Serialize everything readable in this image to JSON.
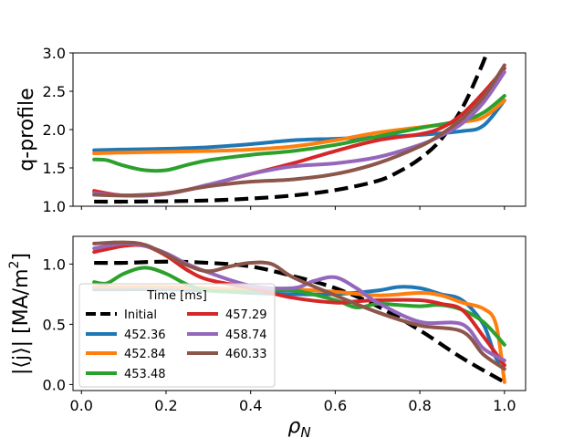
{
  "colors": {
    "Initial": "#000000",
    "452.36": "#1f77b4",
    "452.84": "#ff7f0e",
    "453.48": "#2ca02c",
    "457.29": "#d62728",
    "458.74": "#9467bd",
    "460.33": "#8c564b"
  },
  "chart_data": [
    {
      "type": "line",
      "ylabel": "q-profile",
      "xlim": [
        -0.02,
        1.05
      ],
      "ylim": [
        1.0,
        3.0
      ],
      "xticks": [
        0.0,
        0.2,
        0.4,
        0.6,
        0.8,
        1.0
      ],
      "yticks": [
        1.0,
        1.5,
        2.0,
        2.5,
        3.0
      ],
      "ytick_labels": [
        "1.0",
        "1.5",
        "2.0",
        "2.5",
        "3.0"
      ],
      "series": [
        {
          "name": "Initial",
          "dashed": true,
          "x": [
            0.03,
            0.1,
            0.2,
            0.3,
            0.4,
            0.5,
            0.6,
            0.7,
            0.75,
            0.8,
            0.85,
            0.9,
            0.94,
            0.96
          ],
          "y": [
            1.06,
            1.06,
            1.065,
            1.075,
            1.1,
            1.14,
            1.21,
            1.33,
            1.45,
            1.62,
            1.87,
            2.28,
            2.75,
            3.02
          ]
        },
        {
          "name": "452.36",
          "x": [
            0.03,
            0.1,
            0.2,
            0.3,
            0.4,
            0.5,
            0.6,
            0.7,
            0.8,
            0.9,
            0.95,
            1.0
          ],
          "y": [
            1.73,
            1.74,
            1.75,
            1.77,
            1.81,
            1.86,
            1.88,
            1.9,
            1.93,
            1.98,
            2.05,
            2.38
          ]
        },
        {
          "name": "452.84",
          "x": [
            0.03,
            0.1,
            0.2,
            0.3,
            0.4,
            0.5,
            0.6,
            0.7,
            0.8,
            0.9,
            0.95,
            1.0
          ],
          "y": [
            1.69,
            1.7,
            1.71,
            1.72,
            1.74,
            1.78,
            1.86,
            1.96,
            2.03,
            2.1,
            2.16,
            2.38
          ]
        },
        {
          "name": "453.48",
          "x": [
            0.03,
            0.06,
            0.1,
            0.15,
            0.2,
            0.25,
            0.3,
            0.4,
            0.5,
            0.6,
            0.7,
            0.8,
            0.9,
            0.95,
            1.0
          ],
          "y": [
            1.61,
            1.6,
            1.53,
            1.47,
            1.47,
            1.54,
            1.6,
            1.67,
            1.72,
            1.8,
            1.91,
            2.02,
            2.12,
            2.22,
            2.44
          ]
        },
        {
          "name": "457.29",
          "x": [
            0.03,
            0.1,
            0.2,
            0.3,
            0.4,
            0.5,
            0.6,
            0.7,
            0.8,
            0.85,
            0.9,
            0.95,
            1.0
          ],
          "y": [
            1.2,
            1.14,
            1.16,
            1.28,
            1.42,
            1.56,
            1.72,
            1.86,
            1.94,
            2.02,
            2.2,
            2.48,
            2.8
          ]
        },
        {
          "name": "458.74",
          "x": [
            0.03,
            0.1,
            0.2,
            0.3,
            0.4,
            0.5,
            0.6,
            0.7,
            0.8,
            0.85,
            0.9,
            0.95,
            1.0
          ],
          "y": [
            1.17,
            1.14,
            1.16,
            1.28,
            1.42,
            1.52,
            1.56,
            1.64,
            1.8,
            1.92,
            2.08,
            2.35,
            2.75
          ]
        },
        {
          "name": "460.33",
          "x": [
            0.03,
            0.1,
            0.2,
            0.3,
            0.4,
            0.5,
            0.6,
            0.7,
            0.8,
            0.85,
            0.9,
            0.95,
            1.0
          ],
          "y": [
            1.15,
            1.14,
            1.17,
            1.26,
            1.32,
            1.35,
            1.42,
            1.56,
            1.78,
            1.94,
            2.14,
            2.42,
            2.84
          ]
        }
      ]
    },
    {
      "type": "line",
      "ylabel": "|⟨j⟩| [MA/m",
      "ylabel_sup": "2",
      "ylabel_close": "]",
      "xlabel": "ρ",
      "xlabel_sub": "N",
      "xlim": [
        -0.02,
        1.05
      ],
      "ylim": [
        -0.05,
        1.23
      ],
      "xticks": [
        0.0,
        0.2,
        0.4,
        0.6,
        0.8,
        1.0
      ],
      "xtick_labels": [
        "0.0",
        "0.2",
        "0.4",
        "0.6",
        "0.8",
        "1.0"
      ],
      "yticks": [
        0.0,
        0.5,
        1.0
      ],
      "ytick_labels": [
        "0.0",
        "0.5",
        "1.0"
      ],
      "series": [
        {
          "name": "Initial",
          "dashed": true,
          "x": [
            0.03,
            0.1,
            0.2,
            0.3,
            0.4,
            0.5,
            0.6,
            0.7,
            0.8,
            0.9,
            1.0
          ],
          "y": [
            1.01,
            1.01,
            1.02,
            1.01,
            0.98,
            0.9,
            0.8,
            0.65,
            0.45,
            0.22,
            0.02
          ]
        },
        {
          "name": "452.36",
          "x": [
            0.03,
            0.1,
            0.2,
            0.3,
            0.4,
            0.5,
            0.6,
            0.7,
            0.75,
            0.8,
            0.85,
            0.9,
            0.95,
            0.98,
            1.0
          ],
          "y": [
            0.79,
            0.79,
            0.79,
            0.78,
            0.76,
            0.75,
            0.75,
            0.78,
            0.81,
            0.8,
            0.75,
            0.7,
            0.5,
            0.22,
            0.16
          ]
        },
        {
          "name": "452.84",
          "x": [
            0.03,
            0.1,
            0.2,
            0.3,
            0.4,
            0.5,
            0.6,
            0.7,
            0.8,
            0.85,
            0.9,
            0.95,
            0.98,
            1.0
          ],
          "y": [
            0.81,
            0.81,
            0.81,
            0.8,
            0.79,
            0.79,
            0.77,
            0.74,
            0.76,
            0.74,
            0.68,
            0.63,
            0.5,
            0.02
          ]
        },
        {
          "name": "453.48",
          "x": [
            0.03,
            0.06,
            0.1,
            0.15,
            0.2,
            0.25,
            0.3,
            0.4,
            0.5,
            0.6,
            0.65,
            0.7,
            0.75,
            0.8,
            0.85,
            0.9,
            0.95,
            1.0
          ],
          "y": [
            0.85,
            0.84,
            0.92,
            0.97,
            0.92,
            0.83,
            0.78,
            0.77,
            0.78,
            0.7,
            0.64,
            0.67,
            0.66,
            0.65,
            0.66,
            0.62,
            0.52,
            0.33
          ]
        },
        {
          "name": "457.29",
          "x": [
            0.03,
            0.1,
            0.15,
            0.2,
            0.25,
            0.3,
            0.4,
            0.5,
            0.6,
            0.65,
            0.7,
            0.8,
            0.85,
            0.9,
            0.95,
            1.0
          ],
          "y": [
            1.1,
            1.15,
            1.15,
            1.07,
            0.95,
            0.87,
            0.8,
            0.72,
            0.68,
            0.69,
            0.7,
            0.7,
            0.67,
            0.62,
            0.4,
            0.16
          ]
        },
        {
          "name": "458.74",
          "x": [
            0.03,
            0.1,
            0.15,
            0.2,
            0.25,
            0.3,
            0.4,
            0.5,
            0.55,
            0.6,
            0.65,
            0.7,
            0.8,
            0.9,
            0.95,
            1.0
          ],
          "y": [
            1.13,
            1.17,
            1.15,
            1.09,
            1.0,
            0.93,
            0.82,
            0.8,
            0.86,
            0.89,
            0.8,
            0.68,
            0.52,
            0.5,
            0.3,
            0.2
          ]
        },
        {
          "name": "460.33",
          "x": [
            0.03,
            0.1,
            0.15,
            0.2,
            0.25,
            0.3,
            0.35,
            0.4,
            0.45,
            0.5,
            0.6,
            0.7,
            0.8,
            0.9,
            0.95,
            1.0
          ],
          "y": [
            1.17,
            1.18,
            1.16,
            1.08,
            0.99,
            0.94,
            0.98,
            1.01,
            1.0,
            0.89,
            0.74,
            0.6,
            0.49,
            0.44,
            0.25,
            0.13
          ]
        }
      ],
      "legend": {
        "title": "Time [ms]",
        "placement": "lower-left",
        "entries": [
          "Initial",
          "452.36",
          "452.84",
          "453.48",
          "457.29",
          "458.74",
          "460.33"
        ]
      }
    }
  ]
}
